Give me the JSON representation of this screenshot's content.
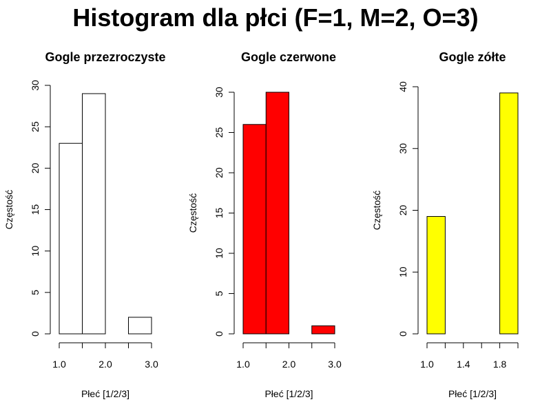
{
  "figure": {
    "title": "Histogram dla płci (F=1, M=2, O=3)"
  },
  "chart_data": [
    {
      "type": "bar",
      "title": "Gogle przezroczyste",
      "xlabel": "Płeć [1/2/3]",
      "ylabel": "Częstość",
      "bins": [
        [
          1.0,
          1.5
        ],
        [
          1.5,
          2.0
        ],
        [
          2.0,
          2.5
        ],
        [
          2.5,
          3.0
        ]
      ],
      "values": [
        23,
        29,
        0,
        2
      ],
      "xlim": [
        1.0,
        3.0
      ],
      "ylim": [
        0,
        30
      ],
      "xticks": [
        1.0,
        1.5,
        2.0,
        2.5,
        3.0
      ],
      "xtick_labels": [
        "1.0",
        "",
        "2.0",
        "",
        "3.0"
      ],
      "yticks": [
        0,
        5,
        10,
        15,
        20,
        25,
        30
      ],
      "ytick_labels": [
        "0",
        "5",
        "10",
        "15",
        "20",
        "25",
        "30"
      ],
      "bar_color": "#ffffff",
      "edge_color": "#000000",
      "grid": false
    },
    {
      "type": "bar",
      "title": "Gogle czerwone",
      "xlabel": "Płeć [1/2/3]",
      "ylabel": "Częstość",
      "bins": [
        [
          1.0,
          1.5
        ],
        [
          1.5,
          2.0
        ],
        [
          2.0,
          2.5
        ],
        [
          2.5,
          3.0
        ]
      ],
      "values": [
        26,
        30,
        0,
        1
      ],
      "xlim": [
        1.0,
        3.0
      ],
      "ylim": [
        0,
        30
      ],
      "xticks": [
        1.0,
        1.5,
        2.0,
        2.5,
        3.0
      ],
      "xtick_labels": [
        "1.0",
        "",
        "2.0",
        "",
        "3.0"
      ],
      "yticks": [
        0,
        5,
        10,
        15,
        20,
        25,
        30
      ],
      "ytick_labels": [
        "0",
        "5",
        "10",
        "15",
        "20",
        "25",
        "30"
      ],
      "bar_color": "#ff0000",
      "edge_color": "#000000",
      "grid": false
    },
    {
      "type": "bar",
      "title": "Gogle zółte",
      "xlabel": "Płeć [1/2/3]",
      "ylabel": "Częstość",
      "bins": [
        [
          1.0,
          1.2
        ],
        [
          1.2,
          1.4
        ],
        [
          1.4,
          1.6
        ],
        [
          1.6,
          1.8
        ],
        [
          1.8,
          2.0
        ]
      ],
      "values": [
        19,
        0,
        0,
        0,
        39
      ],
      "xlim": [
        1.0,
        2.0
      ],
      "ylim": [
        0,
        40
      ],
      "xticks": [
        1.0,
        1.2,
        1.4,
        1.6,
        1.8,
        2.0
      ],
      "xtick_labels": [
        "1.0",
        "",
        "1.4",
        "",
        "1.8",
        ""
      ],
      "yticks": [
        0,
        10,
        20,
        30,
        40
      ],
      "ytick_labels": [
        "0",
        "10",
        "20",
        "30",
        "40"
      ],
      "bar_color": "#ffff00",
      "edge_color": "#000000",
      "grid": false
    }
  ]
}
